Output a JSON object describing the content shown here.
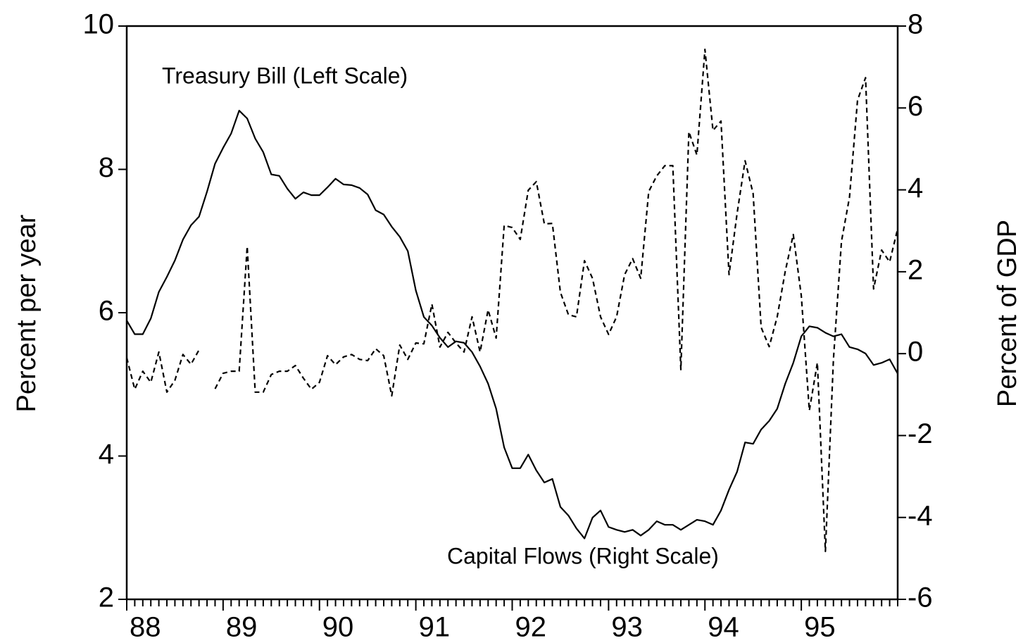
{
  "chart_data": {
    "type": "line",
    "y_label": "Percent per year",
    "y2_label": "Percent of GDP",
    "categories": [
      "88",
      null,
      null,
      null,
      null,
      null,
      null,
      null,
      null,
      null,
      null,
      null,
      "89",
      null,
      null,
      null,
      null,
      null,
      null,
      null,
      null,
      null,
      null,
      null,
      "90",
      null,
      null,
      null,
      null,
      null,
      null,
      null,
      null,
      null,
      null,
      null,
      "91",
      null,
      null,
      null,
      null,
      null,
      null,
      null,
      null,
      null,
      null,
      null,
      "92",
      null,
      null,
      null,
      null,
      null,
      null,
      null,
      null,
      null,
      null,
      null,
      "93",
      null,
      null,
      null,
      null,
      null,
      null,
      null,
      null,
      null,
      null,
      null,
      "94",
      null,
      null,
      null,
      null,
      null,
      null,
      null,
      null,
      null,
      null,
      null,
      "95",
      null,
      null,
      null,
      null,
      null,
      null,
      null,
      null,
      null,
      null,
      null,
      null
    ],
    "series": [
      {
        "name": "Treasury Bill (Left Scale)",
        "color": "#000000",
        "style": "solid",
        "values": [
          5.89,
          5.7,
          5.7,
          5.92,
          6.29,
          6.5,
          6.73,
          7.02,
          7.22,
          7.34,
          7.69,
          8.08,
          8.3,
          8.5,
          8.82,
          8.71,
          8.43,
          8.24,
          7.93,
          7.91,
          7.73,
          7.59,
          7.68,
          7.64,
          7.64,
          7.75,
          7.87,
          7.79,
          7.78,
          7.74,
          7.65,
          7.43,
          7.37,
          7.2,
          7.06,
          6.86,
          6.31,
          5.94,
          5.82,
          5.65,
          5.52,
          5.6,
          5.58,
          5.45,
          5.25,
          5.01,
          4.66,
          4.12,
          3.83,
          3.83,
          4.02,
          3.8,
          3.63,
          3.68,
          3.29,
          3.17,
          2.99,
          2.85,
          3.14,
          3.24,
          3.01,
          2.97,
          2.94,
          2.97,
          2.89,
          2.97,
          3.09,
          3.04,
          3.04,
          2.97,
          3.04,
          3.11,
          3.09,
          3.04,
          3.24,
          3.53,
          3.78,
          4.19,
          4.17,
          4.37,
          4.49,
          4.66,
          5.01,
          5.3,
          5.67,
          5.81,
          5.79,
          5.72,
          5.67,
          5.7,
          5.52,
          5.49,
          5.43,
          5.27,
          5.3,
          5.35,
          5.15
        ]
      },
      {
        "name": "Capital Flows (Right Scale)",
        "color": "#000000",
        "style": "dashed",
        "axis": "y2",
        "values": [
          -0.1,
          -0.87,
          -0.43,
          -0.7,
          0.04,
          -0.94,
          -0.65,
          -0.02,
          -0.26,
          0.09,
          null,
          -0.86,
          -0.48,
          -0.43,
          -0.43,
          2.62,
          -0.94,
          -0.94,
          -0.51,
          -0.43,
          -0.43,
          -0.29,
          -0.6,
          -0.87,
          -0.7,
          -0.05,
          -0.27,
          -0.08,
          -0.02,
          -0.14,
          -0.17,
          0.12,
          -0.05,
          -1.03,
          0.21,
          -0.14,
          0.26,
          0.24,
          1.21,
          0.16,
          0.52,
          0.26,
          0.04,
          0.9,
          0.04,
          1.07,
          0.38,
          3.13,
          3.08,
          2.79,
          3.99,
          4.2,
          3.17,
          3.18,
          1.5,
          0.95,
          0.9,
          2.27,
          1.84,
          0.9,
          0.47,
          0.9,
          1.93,
          2.32,
          1.84,
          3.96,
          4.34,
          4.59,
          4.59,
          -0.39,
          5.42,
          4.85,
          7.43,
          5.45,
          5.68,
          1.93,
          3.42,
          4.71,
          3.91,
          0.64,
          0.17,
          0.9,
          2.01,
          2.91,
          1.41,
          -1.39,
          -0.22,
          -4.83,
          -0.14,
          2.74,
          3.82,
          6.19,
          6.74,
          1.58,
          2.53,
          2.24,
          3.05
        ]
      }
    ],
    "ylim": [
      2,
      10
    ],
    "yticks": [
      2,
      4,
      6,
      8,
      10
    ],
    "y2lim": [
      -6,
      8
    ],
    "y2ticks": [
      -6,
      -4,
      -2,
      0,
      2,
      4,
      6,
      8
    ],
    "grid": false
  }
}
